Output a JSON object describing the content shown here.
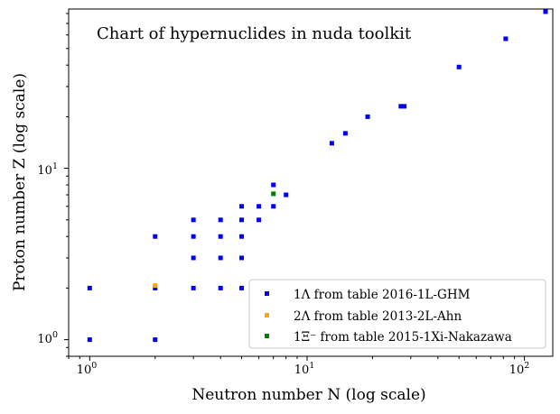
{
  "chart_data": {
    "type": "scatter",
    "title": "Chart of hypernuclides in nuda toolkit",
    "xlabel": "Neutron number N (log scale)",
    "ylabel": "Proton number Z (log scale)",
    "xscale": "log",
    "yscale": "log",
    "xlim": [
      0.8,
      135
    ],
    "ylim": [
      0.8,
      85
    ],
    "x_ticks": [
      {
        "value": 1,
        "base": "10",
        "exp": "0"
      },
      {
        "value": 10,
        "base": "10",
        "exp": "1"
      },
      {
        "value": 100,
        "base": "10",
        "exp": "2"
      }
    ],
    "y_ticks": [
      {
        "value": 1,
        "base": "10",
        "exp": "0"
      },
      {
        "value": 10,
        "base": "10",
        "exp": "1"
      }
    ],
    "legend_position": "lower-right",
    "series": [
      {
        "name": "1Λ from table 2016-1L-GHM",
        "color": "#0000ff",
        "points": [
          [
            1,
            1
          ],
          [
            2,
            1
          ],
          [
            1,
            2
          ],
          [
            2,
            2
          ],
          [
            3,
            2
          ],
          [
            4,
            2
          ],
          [
            5,
            2
          ],
          [
            2,
            4
          ],
          [
            3,
            3
          ],
          [
            4,
            3
          ],
          [
            5,
            3
          ],
          [
            3,
            4
          ],
          [
            4,
            4
          ],
          [
            5,
            4
          ],
          [
            3,
            5
          ],
          [
            4,
            5
          ],
          [
            5,
            5
          ],
          [
            5,
            6
          ],
          [
            6,
            5
          ],
          [
            6,
            6
          ],
          [
            7,
            6
          ],
          [
            7,
            8
          ],
          [
            8,
            7
          ],
          [
            13,
            14
          ],
          [
            15,
            16
          ],
          [
            19,
            20
          ],
          [
            27,
            23
          ],
          [
            28,
            23
          ],
          [
            50,
            39
          ],
          [
            82,
            57
          ],
          [
            125,
            82
          ]
        ]
      },
      {
        "name": "2Λ from table 2013-2L-Ahn",
        "color": "#ffa500",
        "points": [
          [
            2,
            2.07
          ]
        ]
      },
      {
        "name": "1Ξ⁻ from table 2015-1Xi-Nakazawa",
        "color": "#008000",
        "points": [
          [
            7,
            7.1
          ]
        ]
      }
    ]
  }
}
